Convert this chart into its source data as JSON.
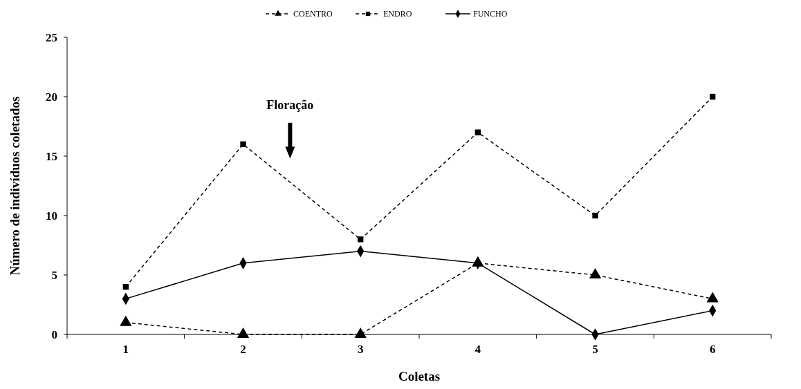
{
  "chart_data": {
    "type": "line",
    "xlabel": "Coletas",
    "ylabel": "Número de indivíduos coletados",
    "categories": [
      "1",
      "2",
      "3",
      "4",
      "5",
      "6"
    ],
    "ylim": [
      0,
      25
    ],
    "yticks": [
      0,
      5,
      10,
      15,
      20,
      25
    ],
    "grid": false,
    "legend": "top",
    "annotations": [
      "Floração"
    ],
    "series": [
      {
        "name": "COENTRO",
        "color": "#000000",
        "marker": "triangle",
        "line_style": "dashed",
        "values": [
          1,
          0,
          0,
          6,
          5,
          3
        ]
      },
      {
        "name": "ENDRO",
        "color": "#000000",
        "marker": "square",
        "line_style": "dashed",
        "values": [
          4,
          16,
          8,
          17,
          10,
          20
        ]
      },
      {
        "name": "FUNCHO",
        "color": "#000000",
        "marker": "diamond",
        "line_style": "solid",
        "values": [
          3,
          6,
          7,
          6,
          0,
          2
        ]
      }
    ]
  }
}
